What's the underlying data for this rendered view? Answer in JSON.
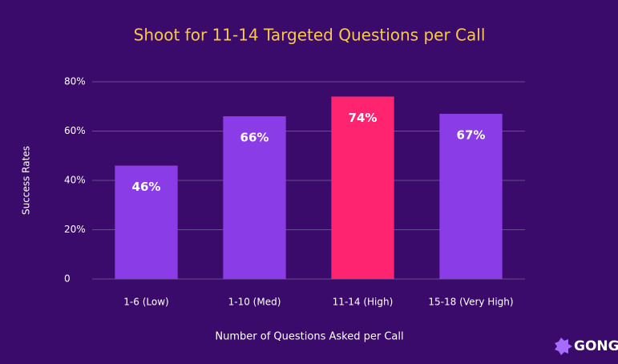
{
  "chart_data": {
    "type": "bar",
    "title": "Shoot for 11-14 Targeted Questions per Call",
    "y_label": "Success Rates",
    "x_label": "Number of Questions Asked per Call",
    "categories": [
      "1-6 (Low)",
      "1-10 (Med)",
      "11-14 (High)",
      "15-18 (Very High)"
    ],
    "values": [
      46,
      66,
      74,
      67
    ],
    "value_labels": [
      "46%",
      "66%",
      "74%",
      "67%"
    ],
    "colors": [
      "#8a3de6",
      "#8a3de6",
      "#ff2470",
      "#8a3de6"
    ],
    "ylim": [
      0,
      80
    ],
    "yticks": [
      0,
      {
        "value": 20,
        "label": "20%"
      },
      {
        "value": 40,
        "label": "40%"
      },
      {
        "value": 60,
        "label": "60%"
      },
      {
        "value": 80,
        "label": "80%"
      }
    ],
    "grid": true
  },
  "logo": "GONG"
}
